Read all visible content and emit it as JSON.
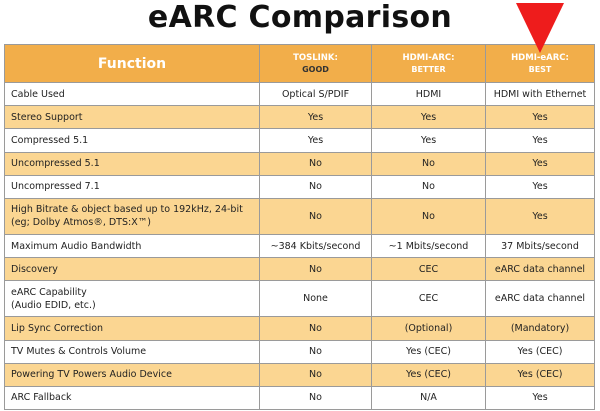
{
  "title": "eARC Comparison",
  "header": {
    "function": "Function",
    "cols": [
      {
        "name": "TOSLINK:",
        "rating": "GOOD"
      },
      {
        "name": "HDMI-ARC:",
        "rating": "BETTER"
      },
      {
        "name": "HDMI-eARC:",
        "rating": "BEST"
      }
    ]
  },
  "rows": [
    {
      "label": "Cable Used",
      "values": [
        "Optical S/PDIF",
        "HDMI",
        "HDMI with Ethernet"
      ]
    },
    {
      "label": "Stereo Support",
      "values": [
        "Yes",
        "Yes",
        "Yes"
      ]
    },
    {
      "label": "Compressed 5.1",
      "values": [
        "Yes",
        "Yes",
        "Yes"
      ]
    },
    {
      "label": "Uncompressed 5.1",
      "values": [
        "No",
        "No",
        "Yes"
      ]
    },
    {
      "label": "Uncompressed 7.1",
      "values": [
        "No",
        "No",
        "Yes"
      ]
    },
    {
      "label": "High Bitrate & object based up to 192kHz, 24-bit",
      "label2": "(eg; Dolby Atmos®, DTS:X™)",
      "values": [
        "No",
        "No",
        "Yes"
      ]
    },
    {
      "label": "Maximum Audio Bandwidth",
      "values": [
        "~384 Kbits/second",
        "~1 Mbits/second",
        "37 Mbits/second"
      ]
    },
    {
      "label": "Discovery",
      "values": [
        "No",
        "CEC",
        "eARC data channel"
      ]
    },
    {
      "label": "eARC Capability",
      "label2": "(Audio EDID, etc.)",
      "values": [
        "None",
        "CEC",
        "eARC data channel"
      ]
    },
    {
      "label": "Lip Sync Correction",
      "values": [
        "No",
        "(Optional)",
        "(Mandatory)"
      ]
    },
    {
      "label": "TV Mutes & Controls Volume",
      "values": [
        "No",
        "Yes (CEC)",
        "Yes (CEC)"
      ]
    },
    {
      "label": "Powering TV Powers Audio Device",
      "values": [
        "No",
        "Yes (CEC)",
        "Yes (CEC)"
      ]
    },
    {
      "label": "ARC Fallback",
      "values": [
        "No",
        "N/A",
        "Yes"
      ]
    }
  ],
  "colors": {
    "accent": "#f2ae4a",
    "row_alt": "#fbd692",
    "arrow": "#ee1c1c"
  },
  "icons": {
    "pointer": "down-arrow-icon"
  }
}
